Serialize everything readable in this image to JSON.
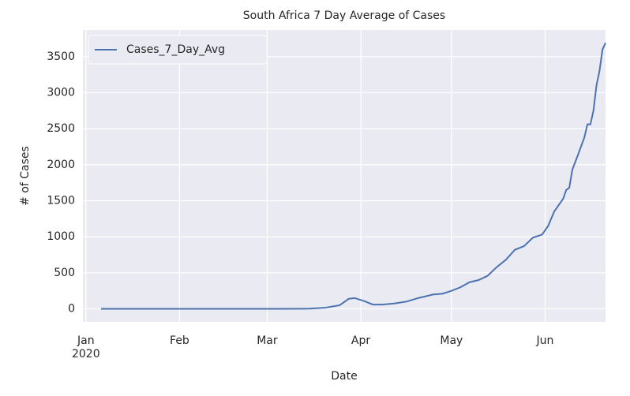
{
  "chart_data": {
    "type": "line",
    "title": "South Africa 7 Day Average of Cases",
    "xlabel": "Date",
    "ylabel": "# of Cases",
    "x": [
      "2020-01-06",
      "2020-01-20",
      "2020-02-05",
      "2020-02-20",
      "2020-03-05",
      "2020-03-15",
      "2020-03-20",
      "2020-03-25",
      "2020-03-28",
      "2020-03-30",
      "2020-04-02",
      "2020-04-05",
      "2020-04-08",
      "2020-04-12",
      "2020-04-16",
      "2020-04-20",
      "2020-04-25",
      "2020-04-28",
      "2020-05-01",
      "2020-05-04",
      "2020-05-07",
      "2020-05-10",
      "2020-05-13",
      "2020-05-16",
      "2020-05-19",
      "2020-05-22",
      "2020-05-25",
      "2020-05-28",
      "2020-05-31",
      "2020-06-02",
      "2020-06-04",
      "2020-06-07",
      "2020-06-08",
      "2020-06-09",
      "2020-06-10",
      "2020-06-12",
      "2020-06-14",
      "2020-06-15",
      "2020-06-16",
      "2020-06-17",
      "2020-06-18",
      "2020-06-19",
      "2020-06-20",
      "2020-06-21"
    ],
    "series": [
      {
        "name": "Cases_7_Day_Avg",
        "color": "#4c72b0",
        "values": [
          0,
          0,
          0,
          0,
          1,
          3,
          15,
          50,
          140,
          150,
          110,
          60,
          60,
          75,
          100,
          150,
          200,
          210,
          250,
          300,
          370,
          400,
          460,
          580,
          680,
          820,
          870,
          990,
          1030,
          1150,
          1350,
          1530,
          1650,
          1680,
          1930,
          2150,
          2380,
          2560,
          2560,
          2750,
          3100,
          3300,
          3600,
          3690
        ]
      }
    ],
    "xlim": [
      "2019-12-31",
      "2020-06-21"
    ],
    "xticks": [
      {
        "value": "2020-01-01",
        "label": "Jan\n2020"
      },
      {
        "value": "2020-02-01",
        "label": "Feb"
      },
      {
        "value": "2020-03-01",
        "label": "Mar"
      },
      {
        "value": "2020-04-01",
        "label": "Apr"
      },
      {
        "value": "2020-05-01",
        "label": "May"
      },
      {
        "value": "2020-06-01",
        "label": "Jun"
      }
    ],
    "ylim": [
      -180,
      3870
    ],
    "yticks": [
      0,
      500,
      1000,
      1500,
      2000,
      2500,
      3000,
      3500
    ],
    "grid": true,
    "legend": "upper left"
  }
}
